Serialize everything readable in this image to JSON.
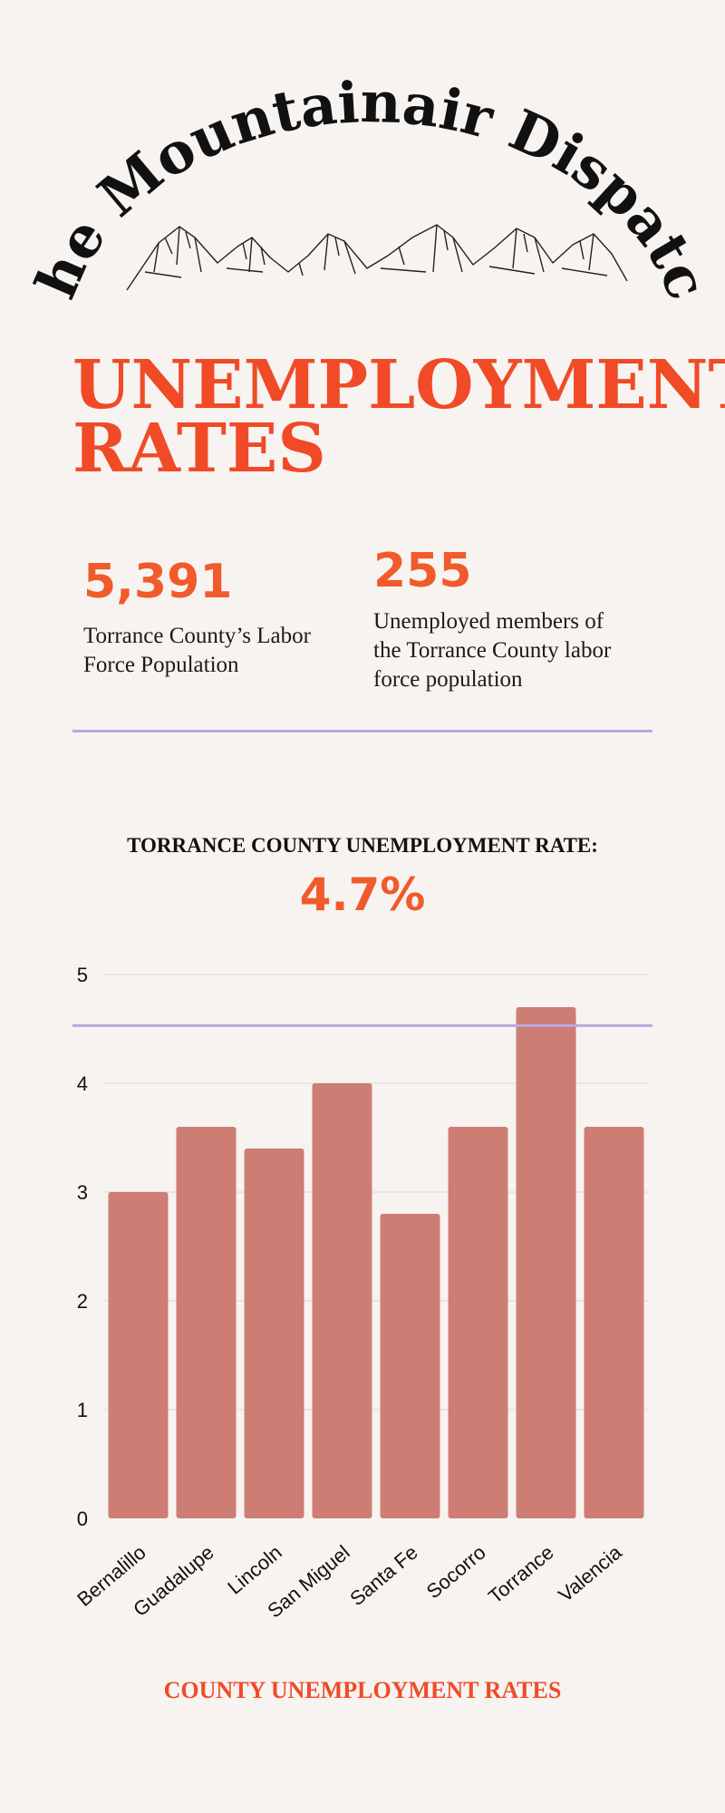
{
  "masthead": {
    "title": "The Mountainair Dispatch"
  },
  "headline": {
    "line1": "UNEMPLOYMENT",
    "line2": "RATES"
  },
  "stats": [
    {
      "value": "5,391",
      "label_lines": [
        "Torrance County’s Labor",
        "Force Population"
      ]
    },
    {
      "value": "255",
      "label_lines": [
        "Unemployed members of",
        "the Torrance County labor",
        "force population"
      ]
    }
  ],
  "rate": {
    "label": "TORRANCE COUNTY UNEMPLOYMENT RATE:",
    "value": "4.7%"
  },
  "colors": {
    "accent": "#f15a2b",
    "bar": "#cd7d74",
    "reference_line": "#b8a9e0",
    "background": "#f7f3f0"
  },
  "chart_data": {
    "type": "bar",
    "categories": [
      "Bernalillo",
      "Guadalupe",
      "Lincoln",
      "San Miguel",
      "Santa Fe",
      "Socorro",
      "Torrance",
      "Valencia"
    ],
    "values": [
      3.0,
      3.6,
      3.4,
      4.0,
      2.8,
      3.6,
      4.7,
      3.6
    ],
    "ylim": [
      0,
      5
    ],
    "yticks": [
      "0",
      "1",
      "2",
      "3",
      "4",
      "5"
    ],
    "reference_line": 4.53,
    "grid": true,
    "title": "COUNTY UNEMPLOYMENT RATES",
    "xlabel": "",
    "ylabel": ""
  }
}
